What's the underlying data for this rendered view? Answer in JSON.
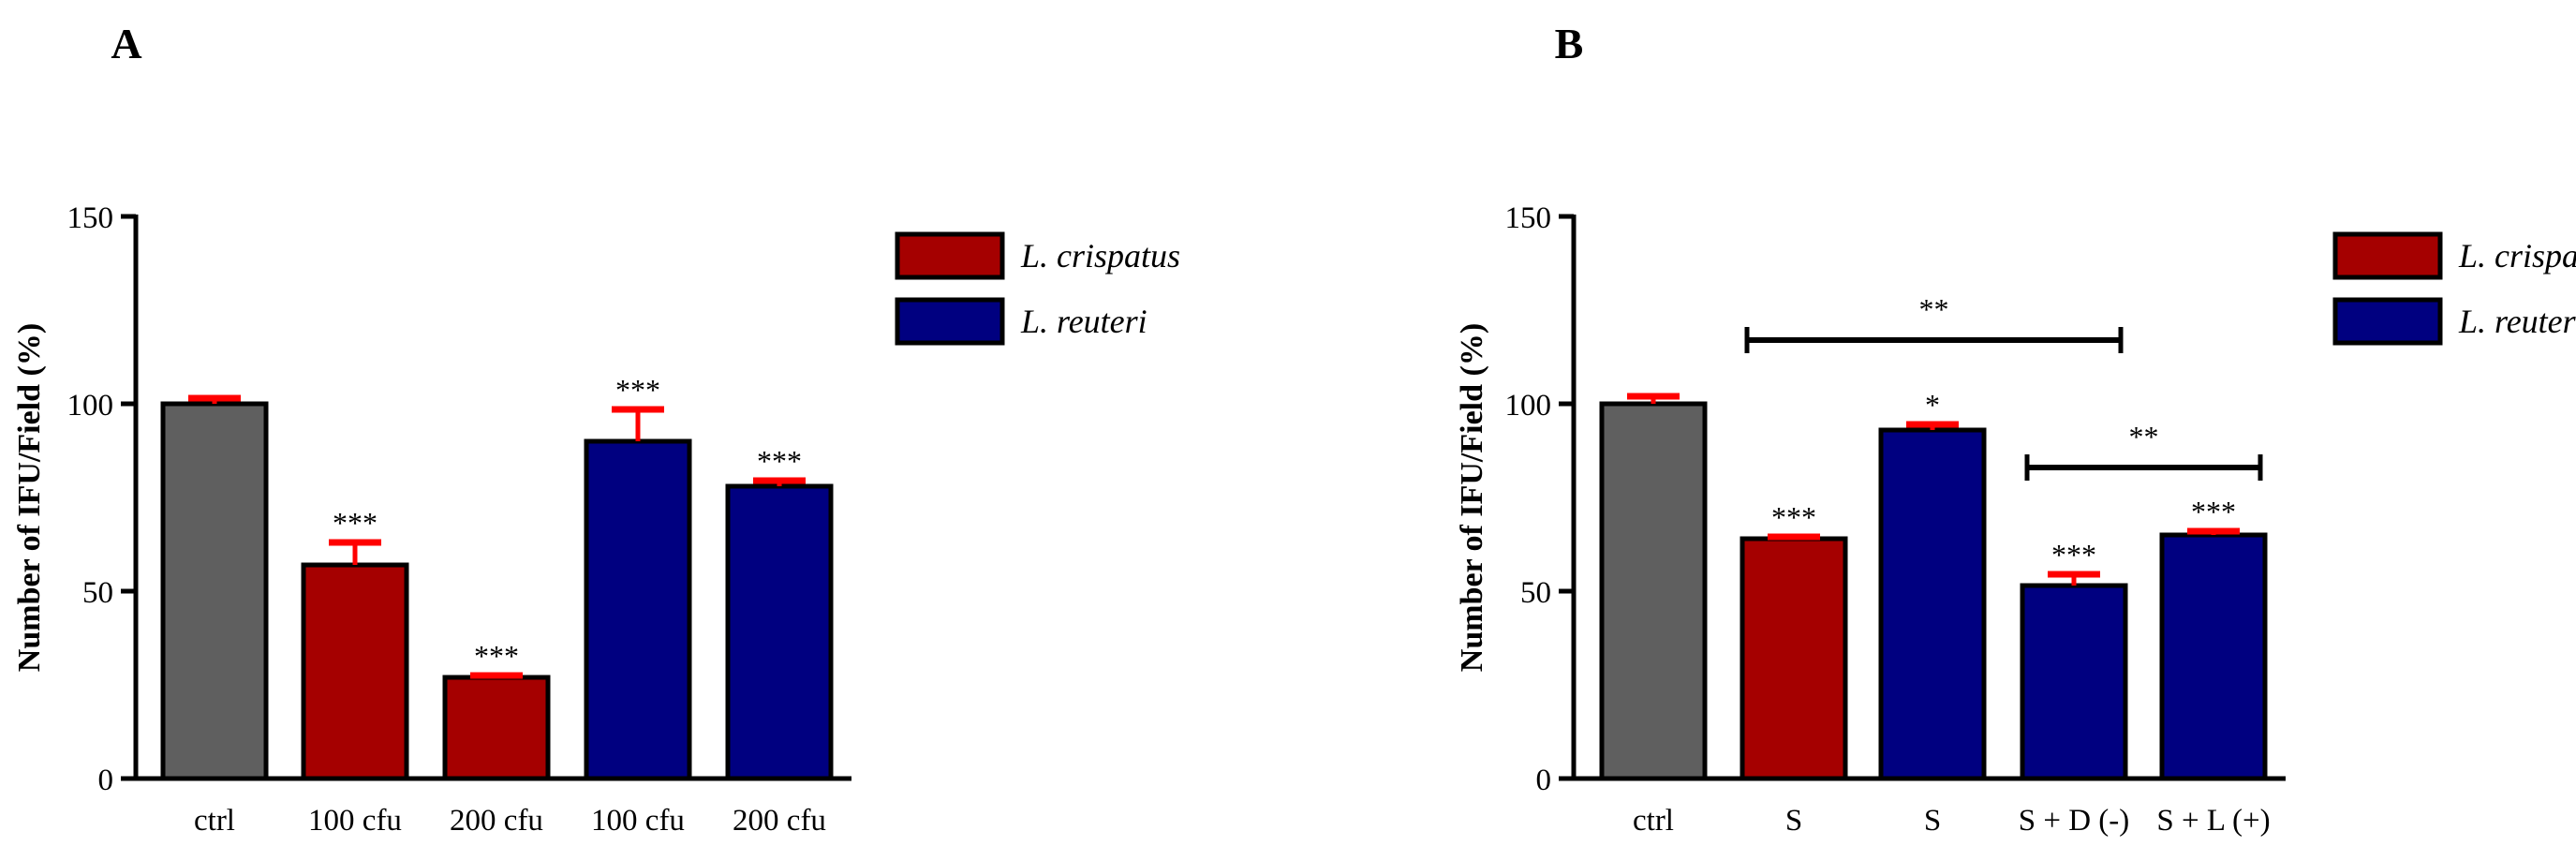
{
  "chart_data": [
    {
      "panel_label": "A",
      "type": "bar",
      "ylabel": "Number of IFU/Field (%)",
      "xlabel": "",
      "ylim": [
        0,
        150
      ],
      "yticks": [
        "0",
        "50",
        "100",
        "150"
      ],
      "categories": [
        "ctrl",
        "100 cfu",
        "200 cfu",
        "100 cfu",
        "200 cfu"
      ],
      "values": [
        100,
        57,
        27,
        90,
        78
      ],
      "errors": [
        1.5,
        6,
        0.5,
        8.5,
        1.5
      ],
      "bar_colors": [
        "#5f5f5f",
        "#a50000",
        "#a50000",
        "#000080",
        "#000080"
      ],
      "significance": [
        "",
        "***",
        "***",
        "***",
        "***"
      ],
      "brackets": [],
      "legend": [
        {
          "name": "L. crispatus",
          "color": "#a50000"
        },
        {
          "name": "L. reuteri",
          "color": "#000080"
        }
      ],
      "legend_position": "right",
      "error_bar_color": "#ff0000",
      "grid": false
    },
    {
      "panel_label": "B",
      "type": "bar",
      "ylabel": "Number of IFU/Field (%)",
      "xlabel": "",
      "ylim": [
        0,
        150
      ],
      "yticks": [
        "0",
        "50",
        "100",
        "150"
      ],
      "categories": [
        "ctrl",
        "S",
        "S",
        "S + D (-)",
        "S + L (+)"
      ],
      "values": [
        100,
        64,
        93,
        51.5,
        65
      ],
      "errors": [
        2,
        0.5,
        1.5,
        3,
        1
      ],
      "bar_colors": [
        "#5f5f5f",
        "#a50000",
        "#000080",
        "#000080",
        "#000080"
      ],
      "significance": [
        "",
        "***",
        "*",
        "***",
        "***"
      ],
      "brackets": [
        {
          "from": 1,
          "to": 3,
          "y": 117,
          "label": "**"
        },
        {
          "from": 3,
          "to": 4,
          "y": 83,
          "label": "**"
        }
      ],
      "legend": [
        {
          "name": "L. crispatus",
          "color": "#a50000"
        },
        {
          "name": "L. reuteri",
          "color": "#000080"
        }
      ],
      "legend_position": "right",
      "error_bar_color": "#ff0000",
      "grid": false
    }
  ]
}
